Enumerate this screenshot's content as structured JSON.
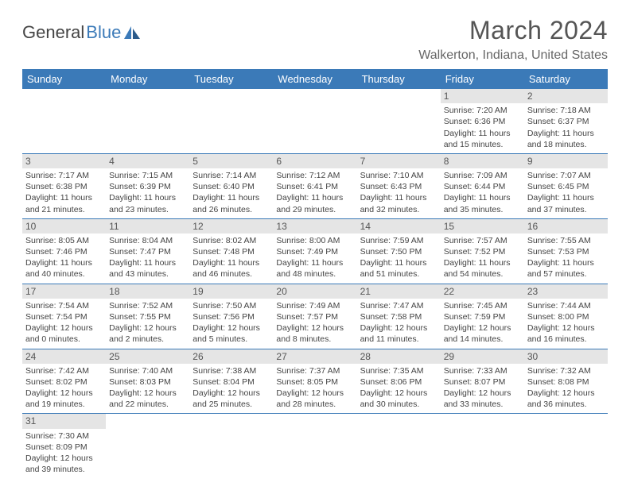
{
  "logo": {
    "word1": "General",
    "word2": "Blue"
  },
  "title": "March 2024",
  "location": "Walkerton, Indiana, United States",
  "day_headers": [
    "Sunday",
    "Monday",
    "Tuesday",
    "Wednesday",
    "Thursday",
    "Friday",
    "Saturday"
  ],
  "colors": {
    "header_bg": "#3b7ab8",
    "header_text": "#ffffff",
    "daynum_bg": "#e5e5e5",
    "text": "#444444",
    "title_text": "#555555",
    "location_text": "#666666",
    "border": "#3b7ab8",
    "background": "#ffffff"
  },
  "weeks": [
    [
      null,
      null,
      null,
      null,
      null,
      {
        "n": "1",
        "sunrise": "7:20 AM",
        "sunset": "6:36 PM",
        "daylight": "11 hours and 15 minutes."
      },
      {
        "n": "2",
        "sunrise": "7:18 AM",
        "sunset": "6:37 PM",
        "daylight": "11 hours and 18 minutes."
      }
    ],
    [
      {
        "n": "3",
        "sunrise": "7:17 AM",
        "sunset": "6:38 PM",
        "daylight": "11 hours and 21 minutes."
      },
      {
        "n": "4",
        "sunrise": "7:15 AM",
        "sunset": "6:39 PM",
        "daylight": "11 hours and 23 minutes."
      },
      {
        "n": "5",
        "sunrise": "7:14 AM",
        "sunset": "6:40 PM",
        "daylight": "11 hours and 26 minutes."
      },
      {
        "n": "6",
        "sunrise": "7:12 AM",
        "sunset": "6:41 PM",
        "daylight": "11 hours and 29 minutes."
      },
      {
        "n": "7",
        "sunrise": "7:10 AM",
        "sunset": "6:43 PM",
        "daylight": "11 hours and 32 minutes."
      },
      {
        "n": "8",
        "sunrise": "7:09 AM",
        "sunset": "6:44 PM",
        "daylight": "11 hours and 35 minutes."
      },
      {
        "n": "9",
        "sunrise": "7:07 AM",
        "sunset": "6:45 PM",
        "daylight": "11 hours and 37 minutes."
      }
    ],
    [
      {
        "n": "10",
        "sunrise": "8:05 AM",
        "sunset": "7:46 PM",
        "daylight": "11 hours and 40 minutes."
      },
      {
        "n": "11",
        "sunrise": "8:04 AM",
        "sunset": "7:47 PM",
        "daylight": "11 hours and 43 minutes."
      },
      {
        "n": "12",
        "sunrise": "8:02 AM",
        "sunset": "7:48 PM",
        "daylight": "11 hours and 46 minutes."
      },
      {
        "n": "13",
        "sunrise": "8:00 AM",
        "sunset": "7:49 PM",
        "daylight": "11 hours and 48 minutes."
      },
      {
        "n": "14",
        "sunrise": "7:59 AM",
        "sunset": "7:50 PM",
        "daylight": "11 hours and 51 minutes."
      },
      {
        "n": "15",
        "sunrise": "7:57 AM",
        "sunset": "7:52 PM",
        "daylight": "11 hours and 54 minutes."
      },
      {
        "n": "16",
        "sunrise": "7:55 AM",
        "sunset": "7:53 PM",
        "daylight": "11 hours and 57 minutes."
      }
    ],
    [
      {
        "n": "17",
        "sunrise": "7:54 AM",
        "sunset": "7:54 PM",
        "daylight": "12 hours and 0 minutes."
      },
      {
        "n": "18",
        "sunrise": "7:52 AM",
        "sunset": "7:55 PM",
        "daylight": "12 hours and 2 minutes."
      },
      {
        "n": "19",
        "sunrise": "7:50 AM",
        "sunset": "7:56 PM",
        "daylight": "12 hours and 5 minutes."
      },
      {
        "n": "20",
        "sunrise": "7:49 AM",
        "sunset": "7:57 PM",
        "daylight": "12 hours and 8 minutes."
      },
      {
        "n": "21",
        "sunrise": "7:47 AM",
        "sunset": "7:58 PM",
        "daylight": "12 hours and 11 minutes."
      },
      {
        "n": "22",
        "sunrise": "7:45 AM",
        "sunset": "7:59 PM",
        "daylight": "12 hours and 14 minutes."
      },
      {
        "n": "23",
        "sunrise": "7:44 AM",
        "sunset": "8:00 PM",
        "daylight": "12 hours and 16 minutes."
      }
    ],
    [
      {
        "n": "24",
        "sunrise": "7:42 AM",
        "sunset": "8:02 PM",
        "daylight": "12 hours and 19 minutes."
      },
      {
        "n": "25",
        "sunrise": "7:40 AM",
        "sunset": "8:03 PM",
        "daylight": "12 hours and 22 minutes."
      },
      {
        "n": "26",
        "sunrise": "7:38 AM",
        "sunset": "8:04 PM",
        "daylight": "12 hours and 25 minutes."
      },
      {
        "n": "27",
        "sunrise": "7:37 AM",
        "sunset": "8:05 PM",
        "daylight": "12 hours and 28 minutes."
      },
      {
        "n": "28",
        "sunrise": "7:35 AM",
        "sunset": "8:06 PM",
        "daylight": "12 hours and 30 minutes."
      },
      {
        "n": "29",
        "sunrise": "7:33 AM",
        "sunset": "8:07 PM",
        "daylight": "12 hours and 33 minutes."
      },
      {
        "n": "30",
        "sunrise": "7:32 AM",
        "sunset": "8:08 PM",
        "daylight": "12 hours and 36 minutes."
      }
    ],
    [
      {
        "n": "31",
        "sunrise": "7:30 AM",
        "sunset": "8:09 PM",
        "daylight": "12 hours and 39 minutes."
      },
      null,
      null,
      null,
      null,
      null,
      null
    ]
  ],
  "labels": {
    "sunrise_prefix": "Sunrise: ",
    "sunset_prefix": "Sunset: ",
    "daylight_prefix": "Daylight: "
  }
}
